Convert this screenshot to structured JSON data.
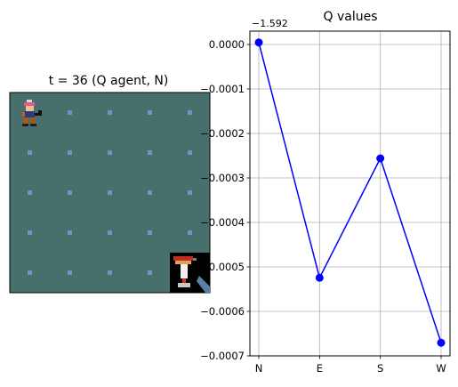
{
  "left_panel": {
    "title": "t = 36 (Q agent, N)",
    "grid": {
      "cols": 5,
      "rows": 5
    },
    "colors": {
      "floor": "#476f6c",
      "dot": "#6f93c9",
      "border": "#000000"
    },
    "sprites": [
      "hero-sprite",
      "goal-sprite"
    ]
  },
  "chart_data": {
    "type": "line",
    "title": "Q values",
    "categories": [
      "N",
      "E",
      "S",
      "W"
    ],
    "series": [
      {
        "name": "Q",
        "values": [
          4.5e-06,
          -0.0005245,
          -0.000256,
          -0.0006705
        ],
        "color": "#0000ff"
      }
    ],
    "offset_text": "−1.592",
    "ylim": [
      -0.0007,
      3e-05
    ],
    "yticks": [
      0.0,
      -0.0001,
      -0.0002,
      -0.0003,
      -0.0004,
      -0.0005,
      -0.0006,
      -0.0007
    ],
    "ytick_labels": [
      "0.0000",
      "−0.0001",
      "−0.0002",
      "−0.0003",
      "−0.0004",
      "−0.0005",
      "−0.0006",
      "−0.0007"
    ],
    "xlabel": "",
    "ylabel": "",
    "grid": true
  }
}
